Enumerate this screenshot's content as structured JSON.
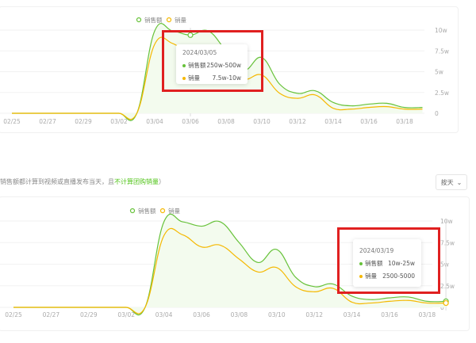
{
  "note": {
    "prefix": "销售额都计算到视频或直播发布当天，且",
    "highlight": "不计算团购销量",
    "suffix": "）"
  },
  "granularity_dropdown": {
    "value": "按天"
  },
  "colors": {
    "sales": "#67c23a",
    "volume": "#f5b800",
    "fill": "#f3fbee",
    "highlight_box": "#e02020"
  },
  "chart_data": [
    {
      "type": "area",
      "x": [
        "02/25",
        "02/26",
        "02/27",
        "02/28",
        "02/29",
        "03/01",
        "03/02",
        "03/03",
        "03/04",
        "03/05",
        "03/06",
        "03/07",
        "03/08",
        "03/09",
        "03/10",
        "03/11",
        "03/12",
        "03/13",
        "03/14",
        "03/15",
        "03/16",
        "03/17",
        "03/18",
        "03/19"
      ],
      "xticks": [
        "02/25",
        "02/27",
        "02/29",
        "03/02",
        "03/04",
        "03/06",
        "03/08",
        "03/10",
        "03/12",
        "03/14",
        "03/16",
        "03/18"
      ],
      "yticks": [
        "0",
        "2.5w",
        "5w",
        "7.5w",
        "10w"
      ],
      "ylim": [
        0,
        10
      ],
      "series": [
        {
          "name": "销售额",
          "values": [
            0,
            0,
            0,
            0,
            0,
            0,
            0,
            0,
            9.9,
            9.9,
            9.4,
            9.9,
            7.5,
            5.2,
            6.7,
            3.5,
            2.4,
            2.7,
            1.3,
            0.9,
            1.1,
            1.2,
            0.7,
            0.7
          ]
        },
        {
          "name": "销量",
          "values": [
            0,
            0,
            0,
            0,
            0,
            0,
            0,
            0,
            8.3,
            8.4,
            7.0,
            7.2,
            5.6,
            4.1,
            4.6,
            2.4,
            1.8,
            2.2,
            0.6,
            0.5,
            0.7,
            0.8,
            0.5,
            0.5
          ]
        }
      ],
      "legend": "top-center",
      "tooltip": {
        "date": "2024/03/05",
        "rows": [
          {
            "label": "销售额",
            "value": "250w-500w"
          },
          {
            "label": "销量",
            "value": "7.5w-10w"
          }
        ]
      }
    },
    {
      "type": "area",
      "x": [
        "02/25",
        "02/26",
        "02/27",
        "02/28",
        "02/29",
        "03/01",
        "03/02",
        "03/03",
        "03/04",
        "03/05",
        "03/06",
        "03/07",
        "03/08",
        "03/09",
        "03/10",
        "03/11",
        "03/12",
        "03/13",
        "03/14",
        "03/15",
        "03/16",
        "03/17",
        "03/18",
        "03/19"
      ],
      "xticks": [
        "02/25",
        "02/27",
        "02/29",
        "03/02",
        "03/04",
        "03/06",
        "03/08",
        "03/10",
        "03/12",
        "03/14",
        "03/16",
        "03/18"
      ],
      "yticks": [
        "0",
        "2.5w",
        "5w",
        "7.5w",
        "10w"
      ],
      "ylim": [
        0,
        10
      ],
      "series": [
        {
          "name": "销售额",
          "values": [
            0,
            0,
            0,
            0,
            0,
            0,
            0,
            0,
            9.9,
            9.9,
            9.4,
            9.9,
            7.5,
            5.2,
            6.7,
            3.5,
            2.4,
            2.7,
            1.3,
            0.9,
            1.1,
            1.2,
            0.7,
            0.7
          ]
        },
        {
          "name": "销量",
          "values": [
            0,
            0,
            0,
            0,
            0,
            0,
            0,
            0,
            8.3,
            8.4,
            7.0,
            7.2,
            5.6,
            4.1,
            4.6,
            2.4,
            1.8,
            2.2,
            0.6,
            0.5,
            0.7,
            0.8,
            0.5,
            0.5
          ]
        }
      ],
      "legend": "top-center",
      "tooltip": {
        "date": "2024/03/19",
        "rows": [
          {
            "label": "销售额",
            "value": "10w-25w"
          },
          {
            "label": "销量",
            "value": "2500-5000"
          }
        ]
      }
    }
  ]
}
